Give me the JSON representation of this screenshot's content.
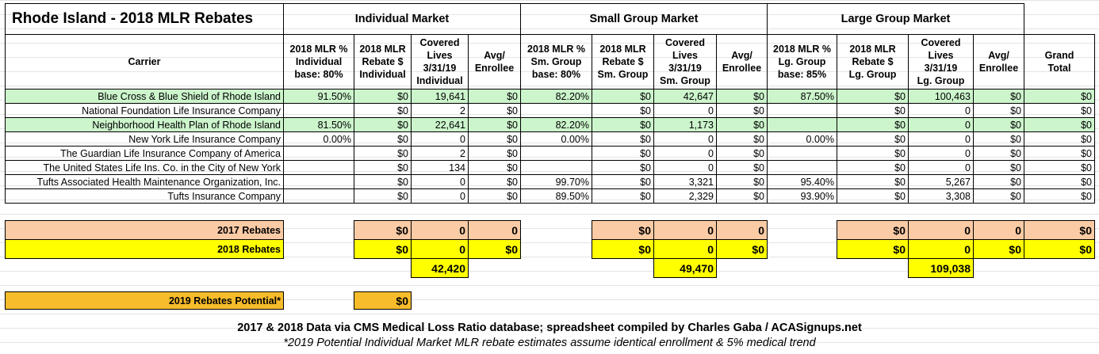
{
  "title": "Rhode Island - 2018 MLR Rebates",
  "markets": [
    "Individual Market",
    "Small Group Market",
    "Large Group Market"
  ],
  "columns": [
    [
      "Carrier"
    ],
    [
      "2018 MLR %",
      "Individual",
      "base: 80%"
    ],
    [
      "2018 MLR",
      "Rebate $",
      "Individual"
    ],
    [
      "Covered",
      "Lives",
      "3/31/19",
      "Individual"
    ],
    [
      "Avg/",
      "Enrollee"
    ],
    [
      "2018 MLR %",
      "Sm. Group",
      "base: 80%"
    ],
    [
      "2018 MLR",
      "Rebate $",
      "Sm. Group"
    ],
    [
      "Covered",
      "Lives",
      "3/31/19",
      "Sm. Group"
    ],
    [
      "Avg/",
      "Enrollee"
    ],
    [
      "2018 MLR %",
      "Lg. Group",
      "base: 85%"
    ],
    [
      "2018 MLR",
      "Rebate $",
      "Lg. Group"
    ],
    [
      "Covered",
      "Lives",
      "3/31/19",
      "Lg. Group"
    ],
    [
      "Avg/",
      "Enrollee"
    ],
    [
      "Grand",
      "Total"
    ]
  ],
  "rows": [
    {
      "carrier": "Blue Cross & Blue Shield of Rhode Island",
      "highlight": true,
      "cells": [
        "91.50%",
        "$0",
        "19,641",
        "$0",
        "82.20%",
        "$0",
        "42,647",
        "$0",
        "87.50%",
        "$0",
        "100,463",
        "$0",
        "$0"
      ]
    },
    {
      "carrier": "National Foundation Life Insurance Company",
      "highlight": false,
      "cells": [
        null,
        "$0",
        "2",
        "$0",
        null,
        "$0",
        "0",
        "$0",
        null,
        "$0",
        "0",
        "$0",
        "$0"
      ]
    },
    {
      "carrier": "Neighborhood Health Plan of Rhode Island",
      "highlight": true,
      "cells": [
        "81.50%",
        "$0",
        "22,641",
        "$0",
        "82.20%",
        "$0",
        "1,173",
        "$0",
        null,
        "$0",
        "0",
        "$0",
        "$0"
      ]
    },
    {
      "carrier": "New York Life Insurance Company",
      "highlight": false,
      "cells": [
        "0.00%",
        "$0",
        "0",
        "$0",
        "0.00%",
        "$0",
        "0",
        "$0",
        "0.00%",
        "$0",
        "0",
        "$0",
        "$0"
      ]
    },
    {
      "carrier": "The Guardian Life Insurance Company of America",
      "highlight": false,
      "cells": [
        null,
        "$0",
        "2",
        "$0",
        null,
        "$0",
        "0",
        "$0",
        null,
        "$0",
        "0",
        "$0",
        "$0"
      ]
    },
    {
      "carrier": "The United States Life Ins. Co. in the City of New York",
      "highlight": false,
      "cells": [
        null,
        "$0",
        "134",
        "$0",
        null,
        "$0",
        "0",
        "$0",
        null,
        "$0",
        "0",
        "$0",
        "$0"
      ]
    },
    {
      "carrier": "Tufts Associated Health Maintenance Organization, Inc.",
      "highlight": false,
      "cells": [
        null,
        "$0",
        "0",
        "$0",
        "99.70%",
        "$0",
        "3,321",
        "$0",
        "95.40%",
        "$0",
        "5,267",
        "$0",
        "$0"
      ]
    },
    {
      "carrier": "Tufts Insurance Company",
      "highlight": false,
      "cells": [
        null,
        "$0",
        "0",
        "$0",
        "89.50%",
        "$0",
        "2,329",
        "$0",
        "93.90%",
        "$0",
        "3,308",
        "$0",
        "$0"
      ]
    }
  ],
  "summary": [
    {
      "label": "2017 Rebates",
      "color": "#fbcba5",
      "cells": [
        null,
        "$0",
        "0",
        "0",
        null,
        "$0",
        "0",
        "0",
        null,
        "$0",
        "0",
        "0",
        "$0"
      ]
    },
    {
      "label": "2018 Rebates",
      "color": "#ffff00",
      "cells": [
        null,
        "$0",
        "0",
        "$0",
        null,
        "$0",
        "0",
        "$0",
        null,
        "$0",
        "0",
        "$0",
        "$0"
      ]
    },
    {
      "label": null,
      "color": "#ffff00",
      "cells": [
        null,
        null,
        "42,420",
        null,
        null,
        null,
        "49,470",
        null,
        null,
        null,
        "109,038",
        null,
        null
      ]
    },
    {
      "label": "2019 Rebates Potential*",
      "color": "#f7bc2b",
      "cells": [
        null,
        "$0",
        null,
        null,
        null,
        null,
        null,
        null,
        null,
        null,
        null,
        null,
        null
      ]
    }
  ],
  "footer": {
    "source": "2017 & 2018 Data via CMS Medical Loss Ratio database; spreadsheet compiled by Charles Gaba / ACASignups.net",
    "note": "*2019 Potential Individual Market MLR rebate estimates assume identical enrollment & 5% medical trend"
  }
}
